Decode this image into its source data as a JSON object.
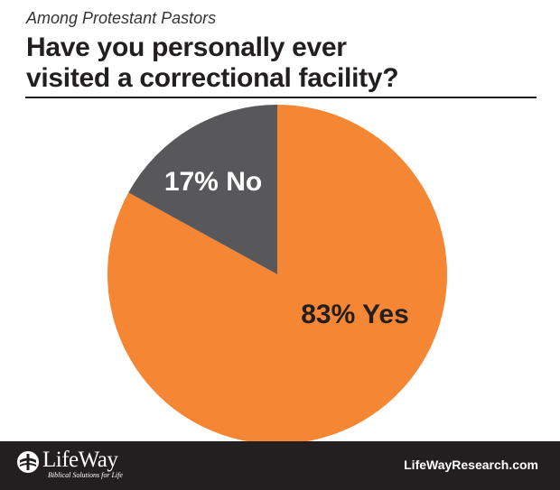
{
  "header": {
    "subtitle": "Among Protestant Pastors",
    "title_line1": "Have you personally ever",
    "title_line2": "visited a correctional facility?"
  },
  "chart_data": {
    "type": "pie",
    "title": "Have you personally ever visited a correctional facility?",
    "subtitle": "Among Protestant Pastors",
    "slices": [
      {
        "label": "Yes",
        "value": 83,
        "display": "83% Yes",
        "color": "#f58634"
      },
      {
        "label": "No",
        "value": 17,
        "display": "17% No",
        "color": "#58585a"
      }
    ]
  },
  "footer": {
    "brand": "LifeWay",
    "tagline": "Biblical Solutions for Life",
    "website": "LifeWayResearch.com",
    "logo_icon": "lifeway-cross-icon"
  },
  "colors": {
    "footer_bg": "#231f20",
    "yes": "#f58634",
    "no": "#58585a"
  }
}
